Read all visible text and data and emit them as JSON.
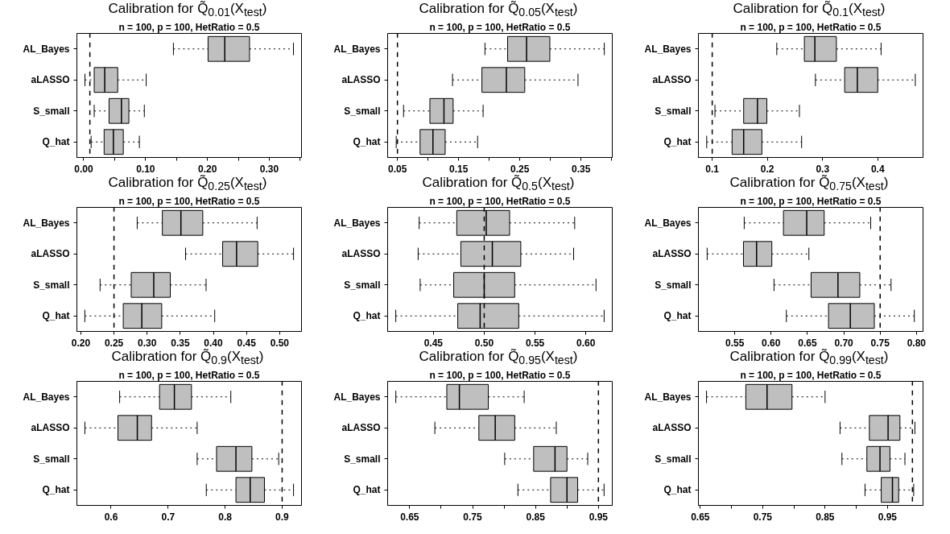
{
  "chart_data": [
    {
      "type": "box",
      "orientation": "horizontal",
      "title": "Calibration for Q̃$_{0.01}$(X$_{test}$)",
      "subtitle": "n = 100, p = 100, HetRatio = 0.5",
      "categories": [
        "AL_Bayes",
        "aLASSO",
        "S_small",
        "Q_hat"
      ],
      "color": "#bfbfbf",
      "boxes": [
        {
          "low": 0.145,
          "q1": 0.201,
          "median": 0.228,
          "q3": 0.268,
          "high": 0.339
        },
        {
          "low": 0.002,
          "q1": 0.017,
          "median": 0.034,
          "q3": 0.055,
          "high": 0.101
        },
        {
          "low": 0.017,
          "q1": 0.041,
          "median": 0.061,
          "q3": 0.073,
          "high": 0.098
        },
        {
          "low": 0.012,
          "q1": 0.033,
          "median": 0.048,
          "q3": 0.064,
          "high": 0.09
        }
      ],
      "xlim": [
        -0.011,
        0.352
      ],
      "xticks": [
        {
          "value": 0,
          "label": "0.00"
        },
        {
          "value": 0.05,
          "label": null
        },
        {
          "value": 0.1,
          "label": "0.10"
        },
        {
          "value": 0.15,
          "label": null
        },
        {
          "value": 0.2,
          "label": "0.20"
        },
        {
          "value": 0.25,
          "label": null
        },
        {
          "value": 0.3,
          "label": "0.30"
        },
        {
          "value": 0.35,
          "label": null
        }
      ],
      "ref_lines": [
        {
          "axis": "x",
          "value": 0.01,
          "line_style": "dashed"
        }
      ]
    },
    {
      "type": "box",
      "orientation": "horizontal",
      "title": "Calibration for Q̃$_{0.05}$(X$_{test}$)",
      "subtitle": "n = 100, p = 100, HetRatio = 0.5",
      "categories": [
        "AL_Bayes",
        "aLASSO",
        "S_small",
        "Q_hat"
      ],
      "color": "#bfbfbf",
      "boxes": [
        {
          "low": 0.193,
          "q1": 0.23,
          "median": 0.261,
          "q3": 0.299,
          "high": 0.388
        },
        {
          "low": 0.14,
          "q1": 0.188,
          "median": 0.228,
          "q3": 0.258,
          "high": 0.345
        },
        {
          "low": 0.06,
          "q1": 0.103,
          "median": 0.126,
          "q3": 0.141,
          "high": 0.19
        },
        {
          "low": 0.048,
          "q1": 0.087,
          "median": 0.108,
          "q3": 0.128,
          "high": 0.181
        }
      ],
      "xlim": [
        0.034,
        0.401
      ],
      "xticks": [
        0.05,
        {
          "value": 0.1,
          "label": null
        },
        0.15,
        {
          "value": 0.2,
          "label": null
        },
        0.25,
        {
          "value": 0.3,
          "label": null
        },
        0.35,
        {
          "value": 0.4,
          "label": null
        }
      ],
      "ref_lines": [
        {
          "axis": "x",
          "value": 0.05,
          "line_style": "dashed"
        }
      ]
    },
    {
      "type": "box",
      "orientation": "horizontal",
      "title": "Calibration for Q̃$_{0.1}$(X$_{test}$)",
      "subtitle": "n = 100, p = 100, HetRatio = 0.5",
      "categories": [
        "AL_Bayes",
        "aLASSO",
        "S_small",
        "Q_hat"
      ],
      "color": "#bfbfbf",
      "boxes": [
        {
          "low": 0.217,
          "q1": 0.267,
          "median": 0.286,
          "q3": 0.325,
          "high": 0.406
        },
        {
          "low": 0.287,
          "q1": 0.34,
          "median": 0.363,
          "q3": 0.4,
          "high": 0.468
        },
        {
          "low": 0.105,
          "q1": 0.157,
          "median": 0.182,
          "q3": 0.199,
          "high": 0.258
        },
        {
          "low": 0.09,
          "q1": 0.136,
          "median": 0.157,
          "q3": 0.19,
          "high": 0.262
        }
      ],
      "xlim": [
        0.075,
        0.482
      ],
      "xticks": [
        0.1,
        0.2,
        0.3,
        0.4
      ],
      "ref_lines": [
        {
          "axis": "x",
          "value": 0.1,
          "line_style": "dashed"
        }
      ]
    },
    {
      "type": "box",
      "orientation": "horizontal",
      "title": "Calibration for Q̃$_{0.25}$(X$_{test}$)",
      "subtitle": "n = 100, p = 100, HetRatio = 0.5",
      "categories": [
        "AL_Bayes",
        "aLASSO",
        "S_small",
        "Q_hat"
      ],
      "color": "#bfbfbf",
      "boxes": [
        {
          "low": 0.285,
          "q1": 0.323,
          "median": 0.351,
          "q3": 0.384,
          "high": 0.466
        },
        {
          "low": 0.358,
          "q1": 0.414,
          "median": 0.435,
          "q3": 0.467,
          "high": 0.521
        },
        {
          "low": 0.229,
          "q1": 0.276,
          "median": 0.31,
          "q3": 0.335,
          "high": 0.389
        },
        {
          "low": 0.206,
          "q1": 0.264,
          "median": 0.292,
          "q3": 0.322,
          "high": 0.402
        }
      ],
      "xlim": [
        0.194,
        0.533
      ],
      "xticks": [
        {
          "value": 0.2,
          "label": "0.20"
        },
        0.25,
        {
          "value": 0.3,
          "label": "0.30"
        },
        0.35,
        {
          "value": 0.4,
          "label": "0.40"
        },
        0.45,
        {
          "value": 0.5,
          "label": "0.50"
        }
      ],
      "ref_lines": [
        {
          "axis": "x",
          "value": 0.25,
          "line_style": "dashed"
        }
      ]
    },
    {
      "type": "box",
      "orientation": "horizontal",
      "title": "Calibration for Q̃$_{0.5}$(X$_{test}$)",
      "subtitle": "n = 100, p = 100, HetRatio = 0.5",
      "categories": [
        "AL_Bayes",
        "aLASSO",
        "S_small",
        "Q_hat"
      ],
      "color": "#bfbfbf",
      "boxes": [
        {
          "low": 0.436,
          "q1": 0.473,
          "median": 0.502,
          "q3": 0.525,
          "high": 0.589
        },
        {
          "low": 0.435,
          "q1": 0.477,
          "median": 0.508,
          "q3": 0.536,
          "high": 0.588
        },
        {
          "low": 0.437,
          "q1": 0.47,
          "median": 0.5,
          "q3": 0.53,
          "high": 0.61
        },
        {
          "low": 0.413,
          "q1": 0.474,
          "median": 0.496,
          "q3": 0.534,
          "high": 0.618
        }
      ],
      "xlim": [
        0.405,
        0.626
      ],
      "xticks": [
        0.45,
        {
          "value": 0.5,
          "label": "0.50"
        },
        0.55,
        {
          "value": 0.6,
          "label": "0.60"
        }
      ],
      "ref_lines": [
        {
          "axis": "x",
          "value": 0.5,
          "line_style": "dashed"
        }
      ]
    },
    {
      "type": "box",
      "orientation": "horizontal",
      "title": "Calibration for Q̃$_{0.75}$(X$_{test}$)",
      "subtitle": "n = 100, p = 100, HetRatio = 0.5",
      "categories": [
        "AL_Bayes",
        "aLASSO",
        "S_small",
        "Q_hat"
      ],
      "color": "#bfbfbf",
      "boxes": [
        {
          "low": 0.563,
          "q1": 0.617,
          "median": 0.649,
          "q3": 0.673,
          "high": 0.737
        },
        {
          "low": 0.512,
          "q1": 0.562,
          "median": 0.58,
          "q3": 0.601,
          "high": 0.652
        },
        {
          "low": 0.604,
          "q1": 0.655,
          "median": 0.692,
          "q3": 0.722,
          "high": 0.765
        },
        {
          "low": 0.621,
          "q1": 0.679,
          "median": 0.709,
          "q3": 0.742,
          "high": 0.797
        }
      ],
      "xlim": [
        0.5,
        0.809
      ],
      "xticks": [
        0.55,
        {
          "value": 0.6,
          "label": "0.60"
        },
        0.65,
        {
          "value": 0.7,
          "label": "0.70"
        },
        0.75,
        {
          "value": 0.8,
          "label": "0.80"
        }
      ],
      "ref_lines": [
        {
          "axis": "x",
          "value": 0.75,
          "line_style": "dashed"
        }
      ]
    },
    {
      "type": "box",
      "orientation": "horizontal",
      "title": "Calibration for Q̃$_{0.9}$(X$_{test}$)",
      "subtitle": "n = 100, p = 100, HetRatio = 0.5",
      "categories": [
        "AL_Bayes",
        "aLASSO",
        "S_small",
        "Q_hat"
      ],
      "color": "#bfbfbf",
      "boxes": [
        {
          "low": 0.615,
          "q1": 0.685,
          "median": 0.711,
          "q3": 0.741,
          "high": 0.81
        },
        {
          "low": 0.554,
          "q1": 0.612,
          "median": 0.646,
          "q3": 0.671,
          "high": 0.751
        },
        {
          "low": 0.751,
          "q1": 0.785,
          "median": 0.819,
          "q3": 0.847,
          "high": 0.894
        },
        {
          "low": 0.767,
          "q1": 0.819,
          "median": 0.844,
          "q3": 0.869,
          "high": 0.92
        }
      ],
      "xlim": [
        0.54,
        0.934
      ],
      "xticks": [
        0.6,
        0.7,
        0.8,
        0.9
      ],
      "ref_lines": [
        {
          "axis": "x",
          "value": 0.9,
          "line_style": "dashed"
        }
      ]
    },
    {
      "type": "box",
      "orientation": "horizontal",
      "title": "Calibration for Q̃$_{0.95}$(X$_{test}$)",
      "subtitle": "n = 100, p = 100, HetRatio = 0.5",
      "categories": [
        "AL_Bayes",
        "aLASSO",
        "S_small",
        "Q_hat"
      ],
      "color": "#bfbfbf",
      "boxes": [
        {
          "low": 0.628,
          "q1": 0.709,
          "median": 0.729,
          "q3": 0.775,
          "high": 0.832
        },
        {
          "low": 0.69,
          "q1": 0.76,
          "median": 0.786,
          "q3": 0.817,
          "high": 0.883
        },
        {
          "low": 0.801,
          "q1": 0.847,
          "median": 0.881,
          "q3": 0.9,
          "high": 0.933
        },
        {
          "low": 0.822,
          "q1": 0.874,
          "median": 0.9,
          "q3": 0.917,
          "high": 0.959
        }
      ],
      "xlim": [
        0.615,
        0.972
      ],
      "xticks": [
        0.65,
        {
          "value": 0.7,
          "label": null
        },
        0.75,
        {
          "value": 0.8,
          "label": null
        },
        0.85,
        {
          "value": 0.9,
          "label": null
        },
        0.95
      ],
      "ref_lines": [
        {
          "axis": "x",
          "value": 0.95,
          "line_style": "dashed"
        }
      ]
    },
    {
      "type": "box",
      "orientation": "horizontal",
      "title": "Calibration for Q̃$_{0.99}$(X$_{test}$)",
      "subtitle": "n = 100, p = 100, HetRatio = 0.5",
      "categories": [
        "AL_Bayes",
        "aLASSO",
        "S_small",
        "Q_hat"
      ],
      "color": "#bfbfbf",
      "boxes": [
        {
          "low": 0.66,
          "q1": 0.723,
          "median": 0.757,
          "q3": 0.797,
          "high": 0.85
        },
        {
          "low": 0.874,
          "q1": 0.921,
          "median": 0.951,
          "q3": 0.97,
          "high": 0.994
        },
        {
          "low": 0.877,
          "q1": 0.917,
          "median": 0.938,
          "q3": 0.954,
          "high": 0.978
        },
        {
          "low": 0.914,
          "q1": 0.94,
          "median": 0.958,
          "q3": 0.968,
          "high": 0.992
        }
      ],
      "xlim": [
        0.647,
        1.007
      ],
      "xticks": [
        0.65,
        {
          "value": 0.7,
          "label": null
        },
        0.75,
        {
          "value": 0.8,
          "label": null
        },
        0.85,
        {
          "value": 0.9,
          "label": null
        },
        0.95
      ],
      "ref_lines": [
        {
          "axis": "x",
          "value": 0.99,
          "line_style": "dashed"
        }
      ]
    }
  ]
}
